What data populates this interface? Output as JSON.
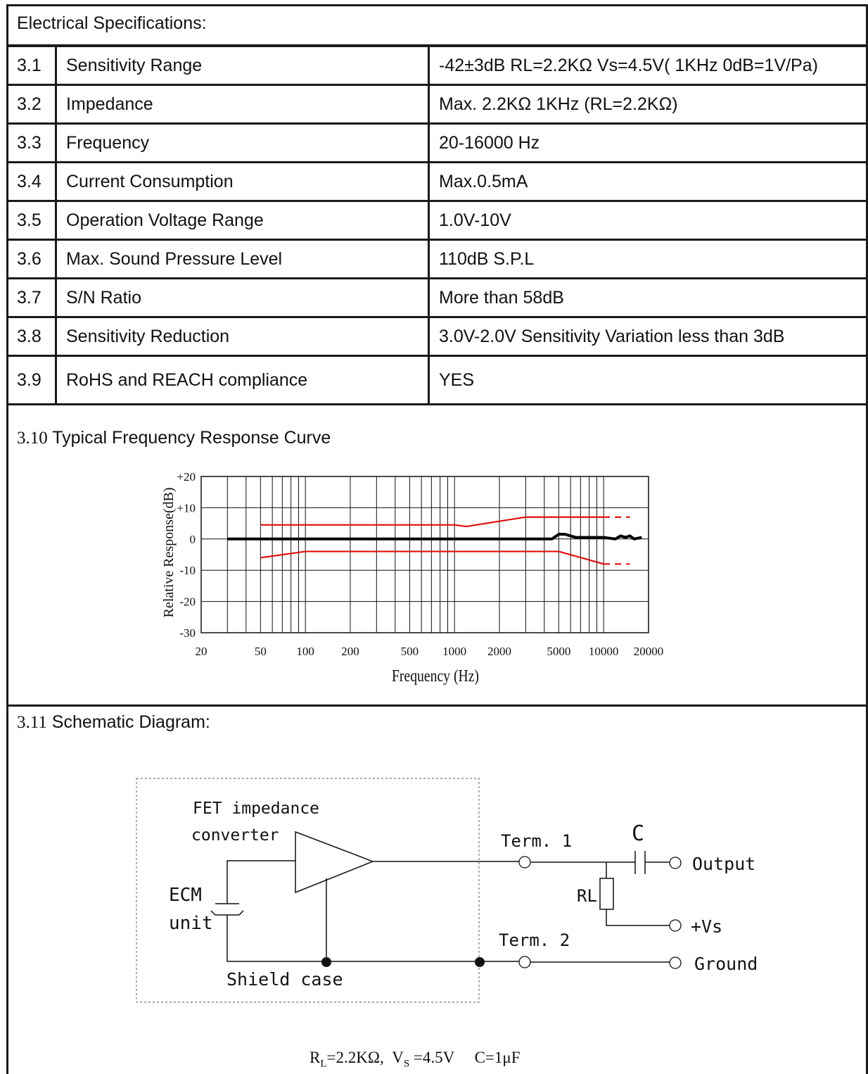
{
  "header": {
    "title": "Electrical Specifications:"
  },
  "specs": [
    {
      "num": "3.1",
      "name": "Sensitivity Range",
      "value": "-42±3dB    RL=2.2KΩ Vs=4.5V( 1KHz 0dB=1V/Pa)"
    },
    {
      "num": "3.2",
      "name": "Impedance",
      "value": "Max. 2.2KΩ 1KHz (RL=2.2KΩ)"
    },
    {
      "num": "3.3",
      "name": "Frequency",
      "value": "20-16000 Hz"
    },
    {
      "num": "3.4",
      "name": "Current Consumption",
      "value": "Max.0.5mA"
    },
    {
      "num": "3.5",
      "name": "Operation Voltage Range",
      "value": "1.0V-10V"
    },
    {
      "num": "3.6",
      "name": "Max. Sound Pressure Level",
      "value": "110dB S.P.L"
    },
    {
      "num": "3.7",
      "name": "S/N Ratio",
      "value": "More than 58dB"
    },
    {
      "num": "3.8",
      "name": "Sensitivity Reduction",
      "value": "3.0V-2.0V Sensitivity Variation less than 3dB"
    },
    {
      "num": "3.9",
      "name": "RoHS and REACH compliance",
      "value": "YES"
    }
  ],
  "curve_section": {
    "num": "3.10",
    "title": "Typical Frequency Response Curve"
  },
  "chart_data": {
    "type": "line",
    "xlabel": "Frequency (Hz)",
    "ylabel": "Relative Response(dB)",
    "x_scale": "log",
    "xlim": [
      20,
      20000
    ],
    "ylim": [
      -30,
      20
    ],
    "x_ticks": [
      "20",
      "50",
      "100",
      "200",
      "500",
      "1000",
      "2000",
      "5000",
      "10000",
      "20000"
    ],
    "y_ticks": [
      "+20",
      "+10",
      "0",
      "-10",
      "-20",
      "-30"
    ],
    "grid": true,
    "colors": {
      "response": "#000000",
      "limits": "#e01010"
    },
    "series": [
      {
        "role": "response",
        "x": [
          30,
          100,
          1000,
          3000,
          4500,
          5000,
          5500,
          6500,
          8000,
          10000,
          12000,
          13000,
          14000,
          15000,
          16000,
          18000
        ],
        "y": [
          0,
          0,
          0,
          0,
          0,
          1.5,
          1.5,
          0.5,
          0.5,
          0.5,
          0,
          1,
          0.5,
          1,
          0,
          0.5
        ]
      },
      {
        "role": "upper-limit",
        "x": [
          50,
          1000,
          1200,
          3000,
          10000
        ],
        "y": [
          4.5,
          4.5,
          4,
          7,
          7
        ]
      },
      {
        "role": "upper-limit-dashed",
        "x": [
          10000,
          15000
        ],
        "y": [
          7,
          7
        ]
      },
      {
        "role": "lower-limit",
        "x": [
          50,
          100,
          1000,
          1200,
          5000,
          10000
        ],
        "y": [
          -6,
          -4,
          -4,
          -4,
          -4,
          -8
        ]
      },
      {
        "role": "lower-limit-dashed",
        "x": [
          10000,
          15000
        ],
        "y": [
          -8,
          -8
        ]
      }
    ]
  },
  "schematic_section": {
    "num": "3.11",
    "title": "Schematic Diagram:"
  },
  "schematic": {
    "fet_label_1": "FET impedance",
    "fet_label_2": "converter",
    "ecm_label_1": "ECM",
    "ecm_label_2": "unit",
    "shield_label": "Shield case",
    "term1": "Term. 1",
    "term2": "Term. 2",
    "cap_label": "C",
    "rl_label": "RL",
    "output": "Output",
    "vs": "+Vs",
    "ground": "Ground"
  },
  "footer": {
    "rl": "R",
    "rl_sub": "L",
    "rl_val": "=2.2KΩ,  ",
    "vs": "V",
    "vs_sub": "S",
    "vs_val": " =4.5V     C=1μF"
  }
}
